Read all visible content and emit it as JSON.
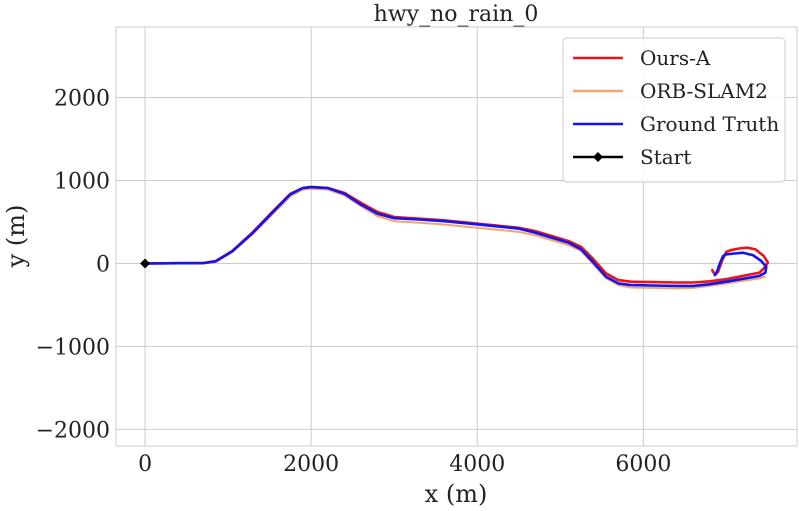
{
  "chart_data": {
    "type": "line",
    "title": "hwy_no_rain_0",
    "xlabel": "x (m)",
    "ylabel": "y (m)",
    "xlim": [
      -350,
      7850
    ],
    "ylim": [
      -2200,
      2850
    ],
    "xticks": [
      0,
      2000,
      4000,
      6000
    ],
    "xtick_labels": [
      "0",
      "2000",
      "4000",
      "6000"
    ],
    "yticks": [
      -2000,
      -1000,
      0,
      1000,
      2000
    ],
    "ytick_labels": [
      "−2000",
      "−1000",
      "0",
      "1000",
      "2000"
    ],
    "grid": true,
    "legend_position": "top-right",
    "series": [
      {
        "name": "Ours-A",
        "color": "#e8141c",
        "x": [
          0,
          400,
          700,
          850,
          1050,
          1300,
          1550,
          1750,
          1900,
          2000,
          2200,
          2400,
          2600,
          2800,
          3000,
          3300,
          3600,
          3900,
          4200,
          4500,
          4700,
          4900,
          5100,
          5250,
          5400,
          5550,
          5700,
          5850,
          6100,
          6400,
          6600,
          6800,
          7000,
          7200,
          7400,
          7450,
          7500,
          7450,
          7350,
          7250,
          7150,
          7050,
          7000,
          6950,
          6900,
          6850,
          6830
        ],
        "y": [
          0,
          3,
          5,
          30,
          150,
          380,
          640,
          840,
          910,
          920,
          910,
          850,
          730,
          620,
          560,
          540,
          520,
          490,
          460,
          430,
          390,
          330,
          270,
          200,
          50,
          -120,
          -200,
          -220,
          -225,
          -230,
          -230,
          -215,
          -190,
          -150,
          -110,
          -60,
          10,
          90,
          170,
          190,
          180,
          160,
          140,
          40,
          -100,
          -120,
          -80
        ]
      },
      {
        "name": "ORB-SLAM2",
        "color": "#f4a46e",
        "x": [
          0,
          400,
          700,
          850,
          1050,
          1300,
          1550,
          1750,
          1900,
          2000,
          2200,
          2400,
          2600,
          2800,
          3000,
          3300,
          3600,
          3900,
          4200,
          4500,
          4700,
          4900,
          5100,
          5250,
          5400,
          5550,
          5700,
          5850,
          6100,
          6400,
          6600,
          6800,
          7000,
          7200,
          7400,
          7460
        ],
        "y": [
          0,
          3,
          5,
          25,
          140,
          360,
          610,
          810,
          890,
          900,
          890,
          820,
          690,
          570,
          510,
          490,
          470,
          440,
          410,
          380,
          340,
          280,
          220,
          150,
          -10,
          -180,
          -260,
          -290,
          -295,
          -300,
          -295,
          -270,
          -240,
          -210,
          -180,
          -160
        ]
      },
      {
        "name": "Ground Truth",
        "color": "#1414f0",
        "x": [
          0,
          400,
          700,
          850,
          1050,
          1300,
          1550,
          1750,
          1900,
          2000,
          2200,
          2400,
          2600,
          2800,
          3000,
          3300,
          3600,
          3900,
          4200,
          4500,
          4700,
          4900,
          5100,
          5250,
          5400,
          5550,
          5700,
          5850,
          6100,
          6400,
          6600,
          6800,
          7000,
          7200,
          7400,
          7470,
          7480,
          7420,
          7320,
          7200,
          7100,
          7000,
          6960,
          6920,
          6880,
          6860
        ],
        "y": [
          0,
          3,
          5,
          25,
          145,
          370,
          630,
          835,
          910,
          920,
          910,
          840,
          710,
          600,
          545,
          530,
          510,
          480,
          450,
          420,
          370,
          310,
          250,
          170,
          10,
          -160,
          -240,
          -260,
          -265,
          -270,
          -270,
          -250,
          -220,
          -185,
          -150,
          -110,
          -40,
          30,
          100,
          130,
          120,
          110,
          90,
          0,
          -120,
          -140
        ]
      },
      {
        "name": "Start",
        "color": "#000000",
        "x": [
          0
        ],
        "y": [
          0
        ]
      }
    ]
  }
}
